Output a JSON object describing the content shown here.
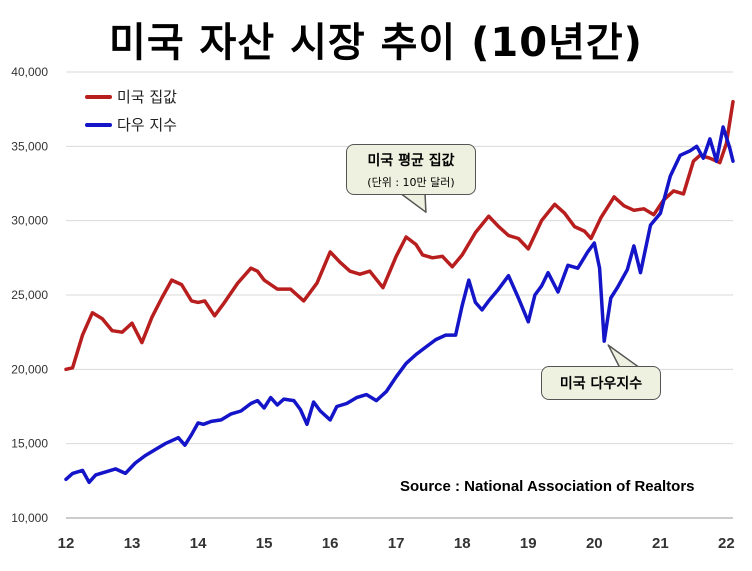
{
  "title": "미국 자산 시장 추이 (10년간)",
  "source": "Source  : National Association of Realtors",
  "callouts": {
    "house_line1": "미국 평균 집값",
    "house_line2": "(단위 : 10만 달러)",
    "dow": "미국 다우지수"
  },
  "colors": {
    "house": "#b81e1e",
    "dow": "#1414c8",
    "grid": "#d9d9d9"
  },
  "chart_data": {
    "type": "line",
    "title": "미국 자산 시장 추이 (10년간)",
    "xlabel": "",
    "ylabel": "",
    "ylim": [
      10000,
      40000
    ],
    "xlim": [
      12,
      22.1
    ],
    "yticks": [
      "10,000",
      "15,000",
      "20,000",
      "25,000",
      "30,000",
      "35,000",
      "40,000"
    ],
    "xticks": [
      "12",
      "13",
      "14",
      "15",
      "16",
      "17",
      "18",
      "19",
      "20",
      "21",
      "22"
    ],
    "grid": true,
    "legend_position": "top-left",
    "series": [
      {
        "name": "미국 집값",
        "color": "#b81e1e",
        "x": [
          12.0,
          12.1,
          12.25,
          12.4,
          12.55,
          12.7,
          12.85,
          13.0,
          13.15,
          13.3,
          13.45,
          13.6,
          13.75,
          13.9,
          14.0,
          14.1,
          14.25,
          14.4,
          14.6,
          14.8,
          14.9,
          15.0,
          15.2,
          15.4,
          15.6,
          15.8,
          16.0,
          16.15,
          16.3,
          16.45,
          16.6,
          16.8,
          17.0,
          17.15,
          17.3,
          17.4,
          17.55,
          17.7,
          17.85,
          18.0,
          18.2,
          18.4,
          18.55,
          18.7,
          18.85,
          19.0,
          19.2,
          19.4,
          19.55,
          19.7,
          19.85,
          19.95,
          20.1,
          20.3,
          20.45,
          20.6,
          20.75,
          20.9,
          21.05,
          21.2,
          21.35,
          21.5,
          21.6,
          21.75,
          21.9,
          22.0,
          22.1
        ],
        "values": [
          20000,
          20100,
          22300,
          23800,
          23400,
          22600,
          22500,
          23100,
          21800,
          23500,
          24800,
          26000,
          25700,
          24600,
          24500,
          24600,
          23600,
          24500,
          25800,
          26800,
          26600,
          26000,
          25400,
          25400,
          24600,
          25800,
          27900,
          27200,
          26600,
          26400,
          26600,
          25500,
          27600,
          28900,
          28400,
          27700,
          27500,
          27600,
          26900,
          27700,
          29200,
          30300,
          29600,
          29000,
          28800,
          28100,
          30000,
          31100,
          30500,
          29600,
          29300,
          28800,
          30200,
          31600,
          31000,
          30700,
          30800,
          30400,
          31400,
          32000,
          31800,
          34000,
          34400,
          34200,
          33900,
          35200,
          38000
        ]
      },
      {
        "name": "다우 지수",
        "color": "#1414c8",
        "x": [
          12.0,
          12.1,
          12.25,
          12.35,
          12.45,
          12.6,
          12.75,
          12.9,
          13.05,
          13.2,
          13.35,
          13.5,
          13.6,
          13.7,
          13.8,
          13.9,
          14.0,
          14.08,
          14.2,
          14.35,
          14.5,
          14.65,
          14.8,
          14.9,
          15.0,
          15.1,
          15.2,
          15.3,
          15.45,
          15.55,
          15.65,
          15.75,
          15.85,
          16.0,
          16.1,
          16.25,
          16.4,
          16.55,
          16.7,
          16.85,
          17.0,
          17.15,
          17.3,
          17.45,
          17.6,
          17.75,
          17.9,
          18.0,
          18.1,
          18.2,
          18.3,
          18.4,
          18.55,
          18.7,
          18.85,
          19.0,
          19.1,
          19.2,
          19.3,
          19.45,
          19.6,
          19.75,
          19.9,
          20.0,
          20.08,
          20.15,
          20.25,
          20.35,
          20.5,
          20.6,
          20.7,
          20.85,
          21.0,
          21.15,
          21.3,
          21.45,
          21.55,
          21.65,
          21.75,
          21.85,
          21.95,
          22.05,
          22.1
        ],
        "values": [
          12600,
          13000,
          13200,
          12400,
          12900,
          13100,
          13300,
          13000,
          13700,
          14200,
          14600,
          15000,
          15200,
          15400,
          14900,
          15600,
          16400,
          16300,
          16500,
          16600,
          17000,
          17200,
          17700,
          17900,
          17400,
          18100,
          17600,
          18000,
          17900,
          17300,
          16300,
          17800,
          17200,
          16600,
          17500,
          17700,
          18100,
          18300,
          17900,
          18500,
          19500,
          20400,
          21000,
          21500,
          22000,
          22300,
          22300,
          24300,
          26000,
          24500,
          24000,
          24600,
          25400,
          26300,
          24800,
          23200,
          25000,
          25600,
          26500,
          25200,
          27000,
          26800,
          27900,
          28500,
          26800,
          21900,
          24800,
          25500,
          26700,
          28300,
          26500,
          29700,
          30500,
          33000,
          34400,
          34700,
          35000,
          34200,
          35500,
          34000,
          36300,
          34900,
          34000
        ]
      }
    ]
  }
}
